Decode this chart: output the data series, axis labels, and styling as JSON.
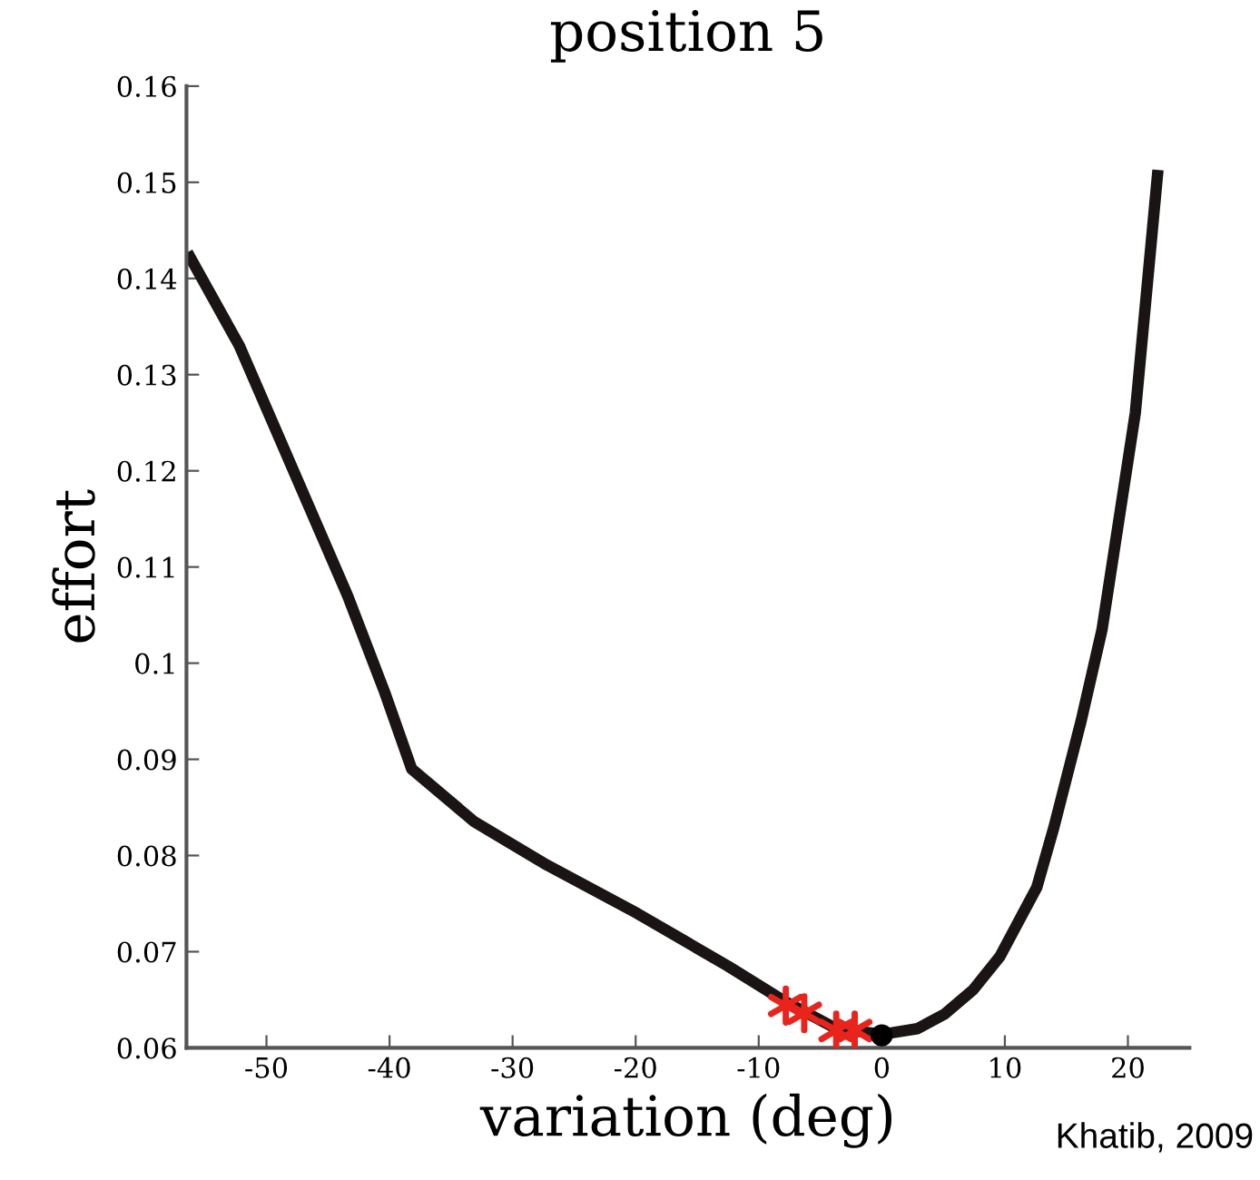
{
  "chart_data": {
    "type": "line",
    "title": "position 5",
    "xlabel": "variation (deg)",
    "ylabel": "effort",
    "xlim": [
      -56.5,
      25
    ],
    "ylim": [
      0.06,
      0.16
    ],
    "xticks": [
      -50,
      -40,
      -30,
      -20,
      -10,
      0,
      10,
      20
    ],
    "yticks": [
      0.06,
      0.07,
      0.08,
      0.09,
      0.1,
      0.11,
      0.12,
      0.13,
      0.14,
      0.15,
      0.16
    ],
    "grid": false,
    "series": [
      {
        "color": "#1a1414",
        "marker": "none",
        "line_style": "solid",
        "x": [
          -56.2,
          -52.2,
          -47.8,
          -43.4,
          -40.4,
          -38.2,
          -33.1,
          -27.2,
          -19.9,
          -12.5,
          -8.1,
          -3.7,
          0,
          2.9,
          5.1,
          7.4,
          9.6,
          12.6,
          14,
          16.2,
          17.9,
          20.6,
          22.4
        ],
        "values": [
          0.1422,
          0.133,
          0.12,
          0.107,
          0.097,
          0.089,
          0.0835,
          0.079,
          0.074,
          0.0685,
          0.065,
          0.062,
          0.0614,
          0.062,
          0.0635,
          0.066,
          0.0695,
          0.0767,
          0.083,
          0.094,
          0.1035,
          0.126,
          0.1507
        ]
      },
      {
        "type": "scatter",
        "color": "#e8241c",
        "marker": "cross",
        "x": [
          -7.8,
          -6.3,
          -3.7,
          -2.2
        ],
        "values": [
          0.0644,
          0.0636,
          0.0618,
          0.0618
        ]
      },
      {
        "type": "scatter",
        "color": "#000000",
        "marker": "circle",
        "x": [
          0
        ],
        "values": [
          0.0613
        ]
      }
    ],
    "annotations": [
      "Khatib, 2009"
    ]
  }
}
